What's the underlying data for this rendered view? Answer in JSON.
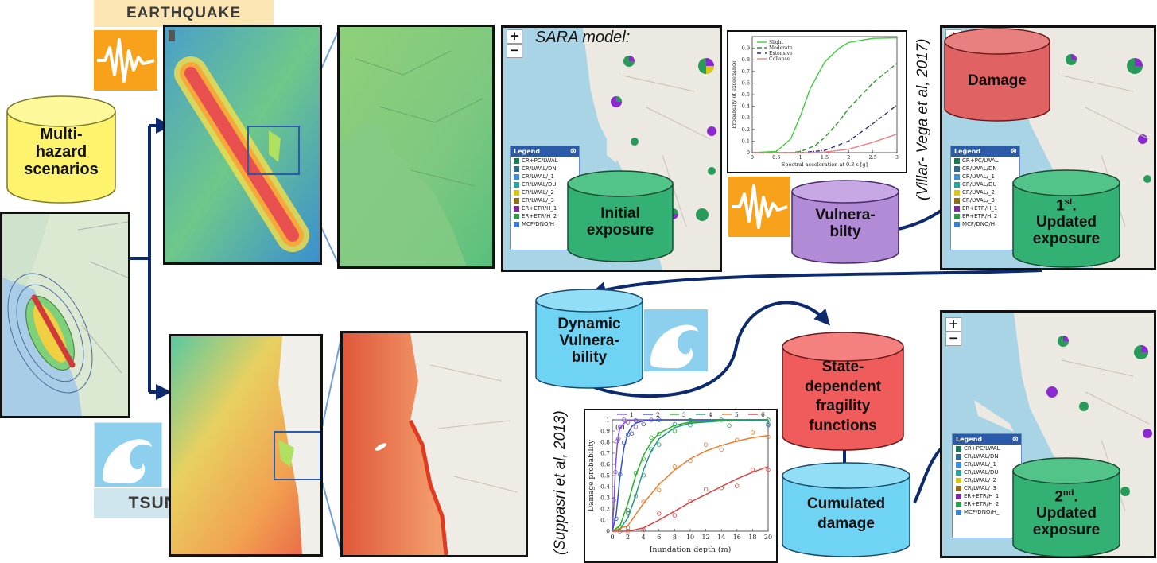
{
  "earthquake": {
    "label": "EARTHQUAKE"
  },
  "tsunami": {
    "label": "TSUNAMI"
  },
  "multihazard": {
    "label": "Multi-hazard scenarios"
  },
  "sara": {
    "title": "SARA model:"
  },
  "initial_exposure": {
    "label": "Initial exposure"
  },
  "vulnerability": {
    "label": "Vulnera-bilty"
  },
  "damage": {
    "label": "Damage"
  },
  "updated1": {
    "sup": "st",
    "prefix": "1",
    "suffix": ".",
    "label": "Updated exposure"
  },
  "dynamic_vulnerability": {
    "label": "Dynamic Vulnera-bility"
  },
  "state_dependent": {
    "label": "State-dependent fragility functions"
  },
  "cumulated_damage": {
    "label": "Cumulated damage"
  },
  "updated2": {
    "sup": "nd",
    "prefix": "2",
    "suffix": ".",
    "label": "Updated exposure"
  },
  "citations": {
    "villar": "(Villar- Vega et al, 2017)",
    "suppasri": "(Suppasri et al, 2013)"
  },
  "legend": {
    "title": "Legend",
    "items": [
      "CR+PC/LWAL",
      "CR/LWAL/DN",
      "CR/LWAL/_1",
      "CR/LWAL/DU",
      "CR/LWAL/_2",
      "CR/LWAL/_3",
      "ER+ETR/H_1",
      "ER+ETR/H_2",
      "MCF/DNO/H_"
    ],
    "colors": [
      "#1a7a52",
      "#2e6a8e",
      "#3a8fd6",
      "#2aa3a0",
      "#d6c81a",
      "#8c6d1a",
      "#7b2aa0",
      "#2e9a4a",
      "#3b7fd0"
    ]
  },
  "zoom": {
    "plus": "+",
    "minus": "−"
  },
  "colors": {
    "cyl_yellow": "#fdf36c",
    "cyl_green": "#33b073",
    "cyl_purple": "#b18bd6",
    "cyl_red": "#e06262",
    "cyl_blue": "#6fd3f3",
    "arrow_navy": "#0e2a6e",
    "badge_orange": "#f7a21a"
  },
  "chart_data": [
    {
      "type": "line",
      "title": "",
      "xlabel": "Spectral acceleration at 0.3 s [g]",
      "ylabel": "Probability of exceedance",
      "xlim": [
        0,
        3
      ],
      "ylim": [
        0,
        1
      ],
      "xticks": [
        "0",
        "0.5",
        "1",
        "1.5",
        "2",
        "2.5",
        "3"
      ],
      "yticks": [
        "0",
        "0.1",
        "0.2",
        "0.3",
        "0.4",
        "0.5",
        "0.6",
        "0.7",
        "0.8",
        "0.9"
      ],
      "legend": "top-left",
      "series": [
        {
          "name": "Slight",
          "color": "#3ad13a",
          "dash": "",
          "x": [
            0,
            0.5,
            0.8,
            1.0,
            1.2,
            1.5,
            1.8,
            2.0,
            2.5,
            3.0
          ],
          "y": [
            0,
            0.01,
            0.12,
            0.32,
            0.55,
            0.78,
            0.9,
            0.95,
            0.985,
            0.99
          ]
        },
        {
          "name": "Moderate",
          "color": "#2a9a2a",
          "dash": "6,3",
          "x": [
            0,
            0.8,
            1.0,
            1.3,
            1.5,
            1.8,
            2.0,
            2.5,
            3.0
          ],
          "y": [
            0,
            0,
            0.01,
            0.06,
            0.13,
            0.27,
            0.38,
            0.6,
            0.77
          ]
        },
        {
          "name": "Extensive",
          "color": "#2a2a8e",
          "dash": "5,2,1,2",
          "x": [
            0,
            1.0,
            1.5,
            2.0,
            2.5,
            3.0
          ],
          "y": [
            0,
            0,
            0.02,
            0.1,
            0.25,
            0.41
          ]
        },
        {
          "name": "Collapse",
          "color": "#f08080",
          "dash": "",
          "x": [
            0,
            1.2,
            1.5,
            2.0,
            2.5,
            3.0
          ],
          "y": [
            0,
            0,
            0.005,
            0.03,
            0.09,
            0.16
          ]
        }
      ]
    },
    {
      "type": "scatter",
      "title": "(a)",
      "xlabel": "Inundation depth (m)",
      "ylabel": "Damage probability",
      "xlim": [
        0,
        20
      ],
      "ylim": [
        0,
        1
      ],
      "xticks": [
        "0",
        "2",
        "4",
        "6",
        "8",
        "10",
        "12",
        "14",
        "16",
        "18",
        "20"
      ],
      "yticks": [
        "0",
        "0.1",
        "0.2",
        "0.3",
        "0.4",
        "0.5",
        "0.6",
        "0.7",
        "0.8",
        "0.9",
        "1"
      ],
      "legend": "top",
      "series": [
        {
          "name": "1",
          "color": "#8a4ed4",
          "x": [
            0,
            0.2,
            0.4,
            0.6,
            0.8,
            1,
            1.5,
            2,
            3,
            5,
            10,
            20
          ],
          "y": [
            0,
            0.25,
            0.55,
            0.75,
            0.87,
            0.93,
            0.97,
            0.99,
            1,
            1,
            1,
            1
          ]
        },
        {
          "name": "2",
          "color": "#3050c8",
          "x": [
            0,
            0.5,
            1,
            1.5,
            2,
            2.5,
            3,
            4,
            6,
            10,
            20
          ],
          "y": [
            0,
            0.15,
            0.5,
            0.75,
            0.88,
            0.94,
            0.97,
            0.99,
            1,
            1,
            1
          ]
        },
        {
          "name": "3",
          "color": "#2ab02a",
          "x": [
            0,
            1,
            2,
            3,
            4,
            5,
            6,
            8,
            10,
            15,
            20
          ],
          "y": [
            0,
            0.05,
            0.25,
            0.5,
            0.68,
            0.8,
            0.88,
            0.95,
            0.98,
            1,
            1
          ]
        },
        {
          "name": "4",
          "color": "#1c9c78",
          "x": [
            0,
            1,
            2,
            3,
            4,
            5,
            6,
            8,
            10,
            14,
            20
          ],
          "y": [
            0,
            0.02,
            0.12,
            0.32,
            0.55,
            0.72,
            0.83,
            0.93,
            0.97,
            0.99,
            1
          ]
        },
        {
          "name": "5",
          "color": "#f07a28",
          "x": [
            0,
            2,
            4,
            6,
            8,
            10,
            12,
            14,
            16,
            18,
            20
          ],
          "y": [
            0,
            0.05,
            0.25,
            0.42,
            0.55,
            0.65,
            0.72,
            0.77,
            0.81,
            0.84,
            0.86
          ]
        },
        {
          "name": "6",
          "color": "#e04040",
          "x": [
            0,
            2,
            4,
            6,
            8,
            10,
            12,
            14,
            16,
            18,
            20
          ],
          "y": [
            0,
            0,
            0.03,
            0.1,
            0.18,
            0.26,
            0.33,
            0.4,
            0.47,
            0.53,
            0.58
          ]
        }
      ]
    }
  ]
}
